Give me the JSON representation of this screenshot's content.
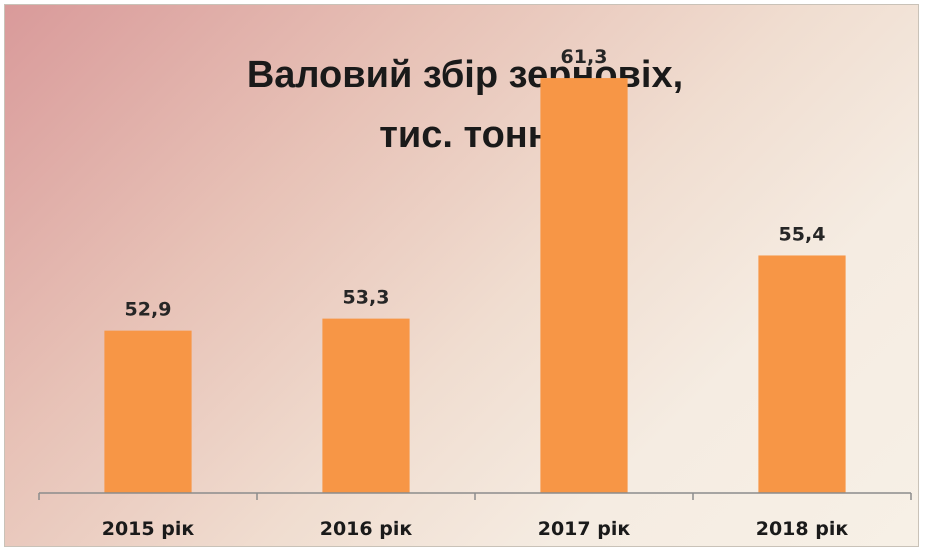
{
  "chart_data": {
    "type": "bar",
    "title": "Валовий збір зерновіх,",
    "subtitle": "тис. тонн",
    "categories": [
      "2015 рік",
      "2016 рік",
      "2017 рік",
      "2018 рік"
    ],
    "values": [
      52.9,
      53.3,
      61.3,
      55.4
    ],
    "value_labels": [
      "52,9",
      "53,3",
      "61,3",
      "55,4"
    ],
    "xlabel": "",
    "ylabel": "",
    "ylim": [
      47.5,
      62.5
    ],
    "grid": false,
    "legend": "none",
    "colors": {
      "bar": "#f79646",
      "axis": "#8c8c8c"
    }
  }
}
